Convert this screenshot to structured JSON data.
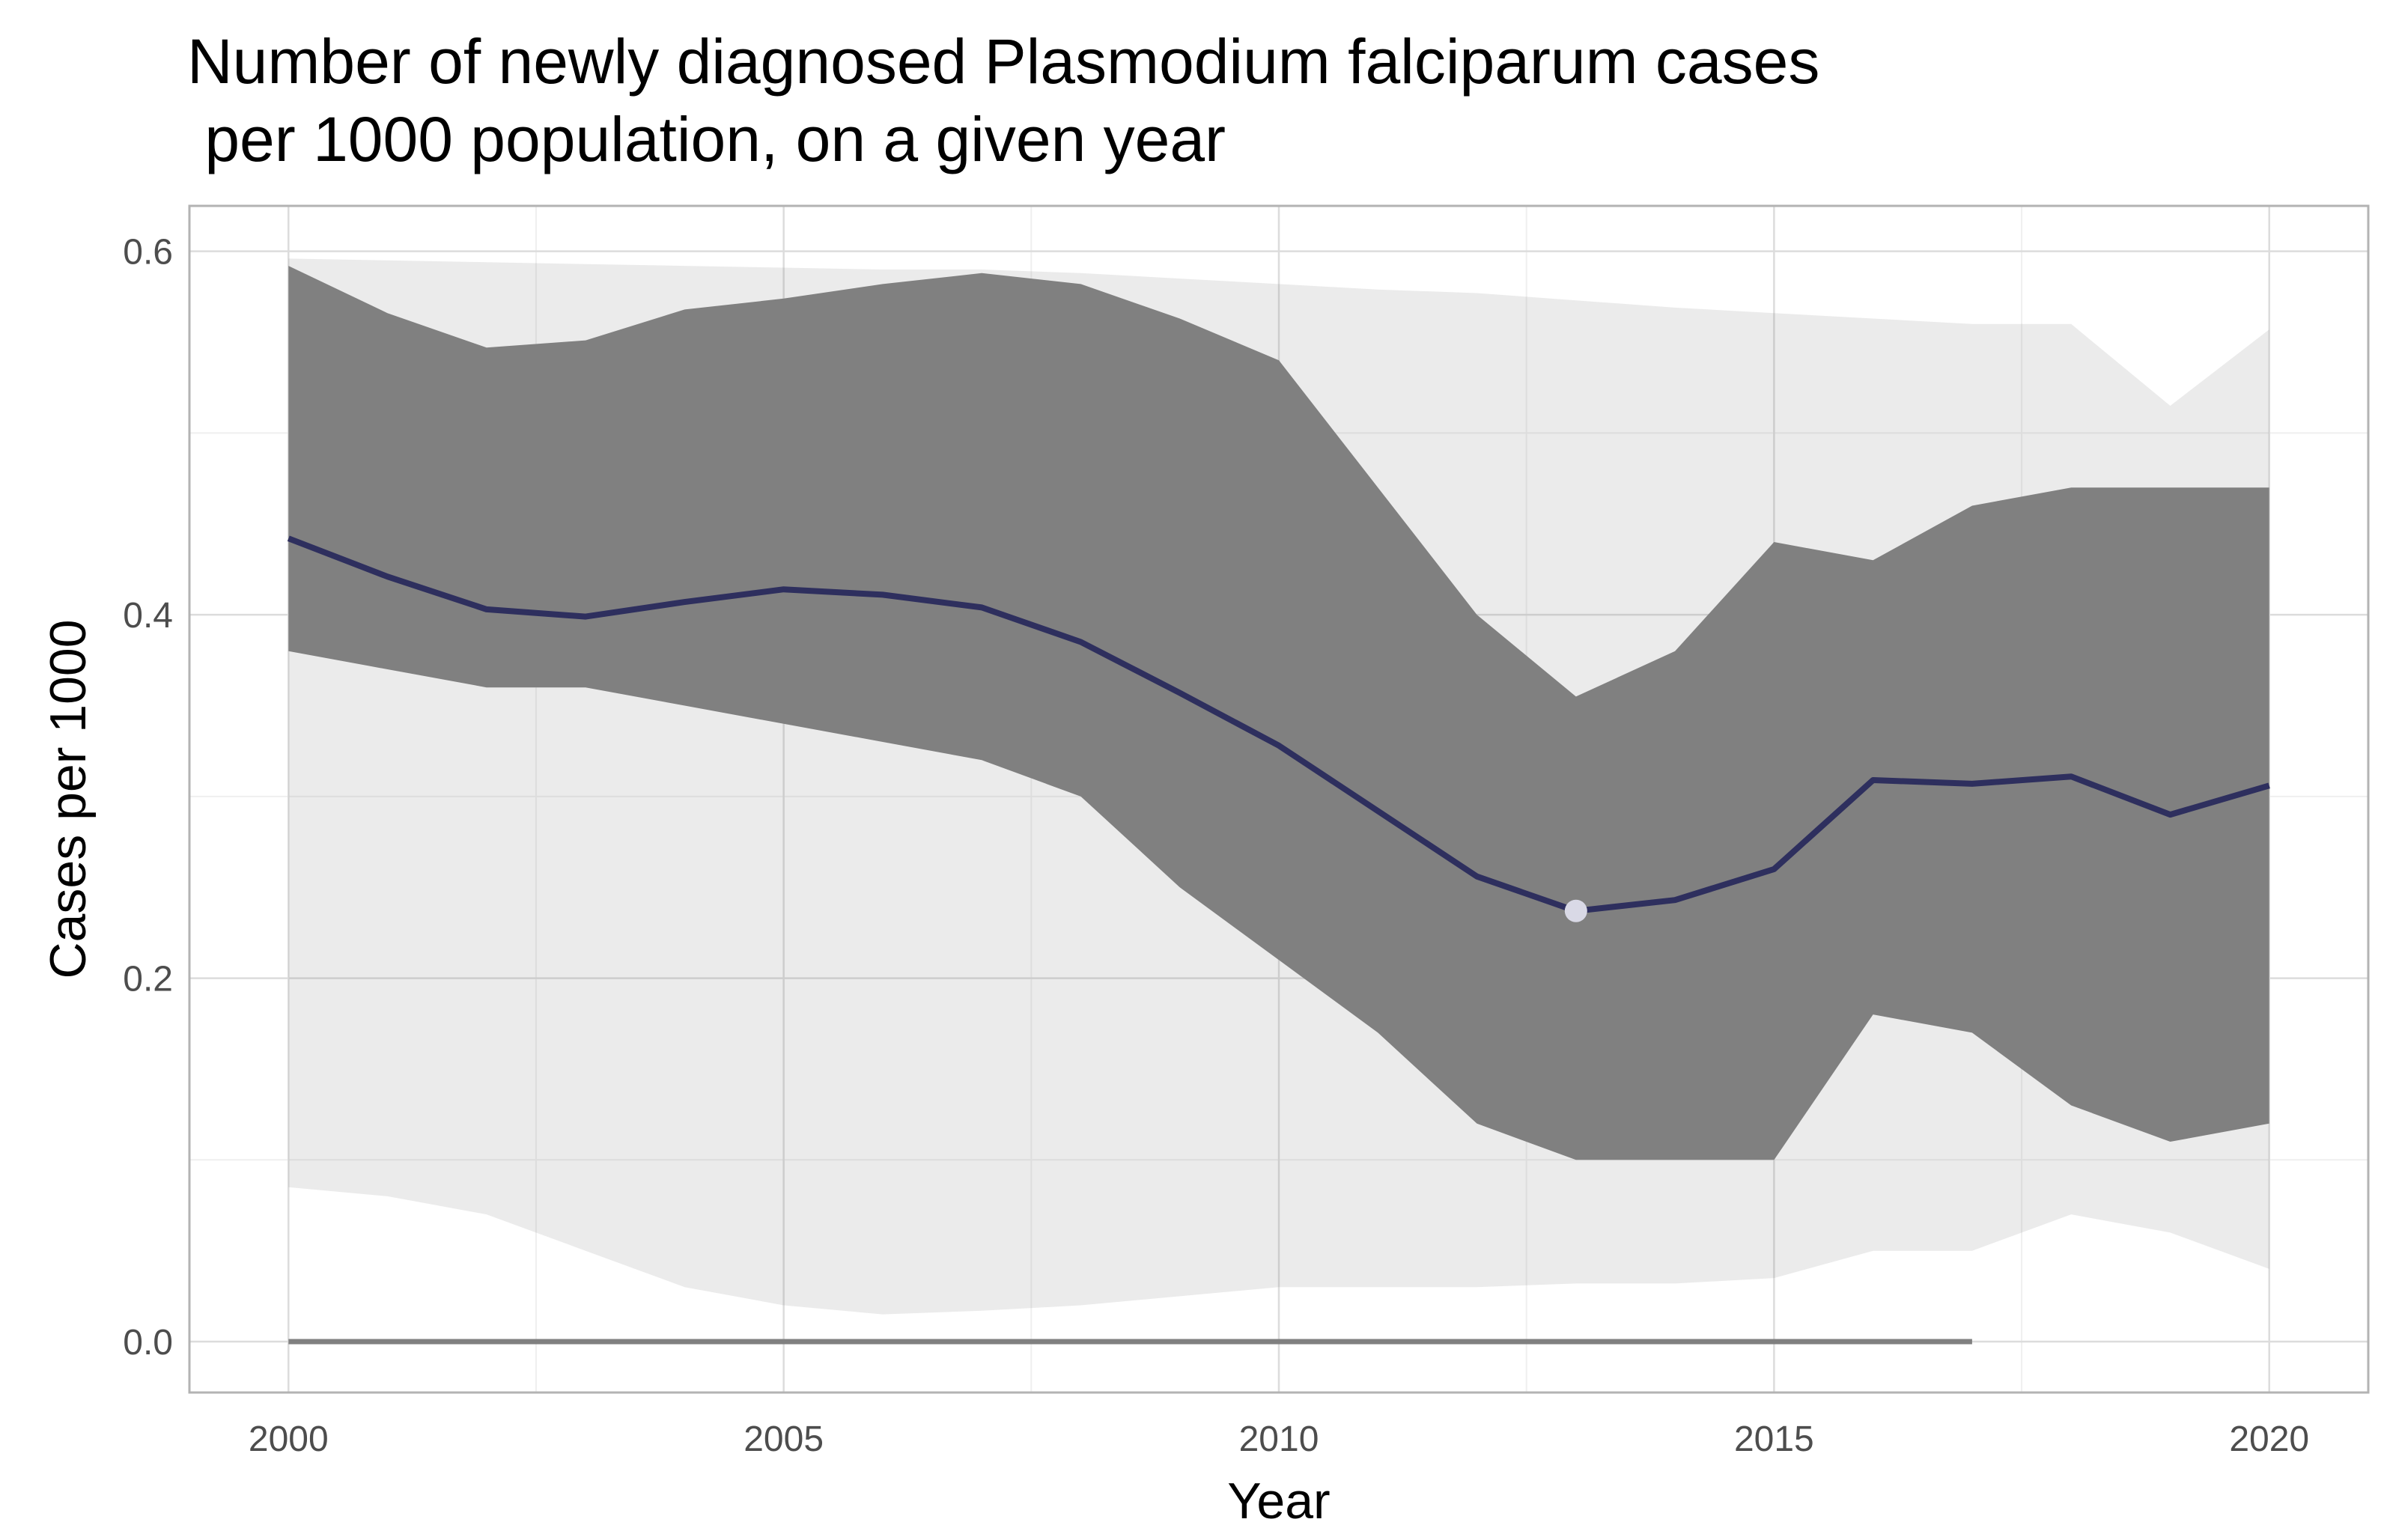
{
  "chart_data": {
    "type": "line",
    "title_lines": [
      "Number of newly diagnosed Plasmodium falciparum cases",
      " per 1000 population, on a given year"
    ],
    "xlabel": "Year",
    "ylabel": "Cases per 1000",
    "xlim": [
      1999,
      2021
    ],
    "ylim": [
      -0.028,
      0.625
    ],
    "x_ticks": [
      2000,
      2005,
      2010,
      2015,
      2020
    ],
    "x_tick_labels": [
      "2000",
      "2005",
      "2010",
      "2015",
      "2020"
    ],
    "y_ticks": [
      0.0,
      0.2,
      0.4,
      0.6
    ],
    "y_tick_labels": [
      "0.0",
      "0.2",
      "0.4",
      "0.6"
    ],
    "grid": true,
    "legend": "none",
    "colors": {
      "panel_border": "#b3b3b3",
      "grid_major": "#dcdcdc",
      "grid_minor": "#efefef",
      "band": "#808080",
      "mean_line": "#2e2f5e",
      "highlight_point": "#d9d9e6"
    },
    "series": [
      {
        "role": "mean",
        "x": [
          2000,
          2001,
          2002,
          2003,
          2004,
          2005,
          2006,
          2007,
          2008,
          2009,
          2010,
          2011,
          2012,
          2013,
          2014,
          2015,
          2016,
          2017,
          2018,
          2019,
          2020
        ],
        "y": [
          0.442,
          0.421,
          0.403,
          0.399,
          0.407,
          0.414,
          0.411,
          0.404,
          0.385,
          0.357,
          0.328,
          0.292,
          0.256,
          0.237,
          0.243,
          0.26,
          0.309,
          0.307,
          0.311,
          0.29,
          0.306
        ]
      },
      {
        "role": "zero_line",
        "x": [
          2000,
          2017
        ],
        "y": [
          0.0,
          0.0
        ]
      }
    ],
    "highlight_point": {
      "x": 2013,
      "y": 0.237
    },
    "bands": [
      {
        "role": "dense-core",
        "x": [
          2000,
          2001,
          2002,
          2003,
          2004,
          2005,
          2006,
          2007,
          2008,
          2009,
          2010,
          2011,
          2012,
          2013,
          2014,
          2015,
          2016,
          2017,
          2018,
          2019,
          2020
        ],
        "upper": [
          0.592,
          0.566,
          0.547,
          0.551,
          0.568,
          0.574,
          0.582,
          0.588,
          0.582,
          0.563,
          0.54,
          0.47,
          0.4,
          0.355,
          0.38,
          0.44,
          0.43,
          0.46,
          0.47,
          0.47,
          0.47
        ],
        "lower": [
          0.38,
          0.37,
          0.36,
          0.36,
          0.35,
          0.34,
          0.33,
          0.32,
          0.3,
          0.25,
          0.21,
          0.17,
          0.12,
          0.1,
          0.1,
          0.1,
          0.18,
          0.17,
          0.13,
          0.11,
          0.12
        ]
      },
      {
        "role": "outer-envelope",
        "x": [
          2000,
          2001,
          2002,
          2003,
          2004,
          2005,
          2006,
          2007,
          2008,
          2009,
          2010,
          2011,
          2012,
          2013,
          2014,
          2015,
          2016,
          2017,
          2018,
          2019,
          2020
        ],
        "upper": [
          0.596,
          0.595,
          0.594,
          0.593,
          0.592,
          0.591,
          0.59,
          0.59,
          0.588,
          0.585,
          0.582,
          0.579,
          0.577,
          0.573,
          0.569,
          0.566,
          0.563,
          0.56,
          0.56,
          0.515,
          0.557
        ],
        "lower": [
          0.085,
          0.08,
          0.07,
          0.05,
          0.03,
          0.02,
          0.015,
          0.017,
          0.02,
          0.025,
          0.03,
          0.03,
          0.03,
          0.032,
          0.032,
          0.035,
          0.05,
          0.05,
          0.07,
          0.06,
          0.04
        ]
      }
    ]
  }
}
